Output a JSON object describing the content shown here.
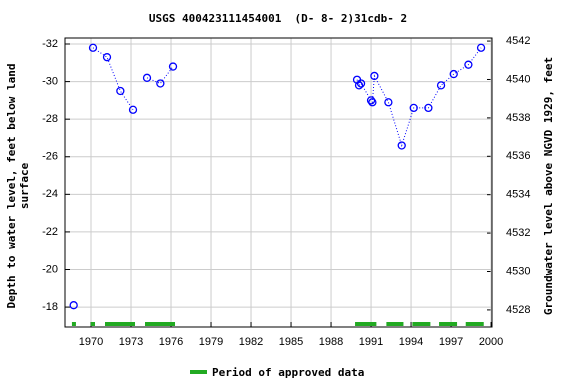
{
  "chart_data": {
    "type": "line",
    "title": "USGS 400423111454001  (D- 8- 2)31cdb- 2",
    "y_label": [
      "Depth to water level, feet below land",
      "surface"
    ],
    "y2_label": "Groundwater level above NGVD 1929, feet",
    "x": [
      1968.7,
      null,
      1970.15,
      1971.2,
      1972.2,
      1973.15,
      null,
      1974.2,
      1975.2,
      1976.15,
      null,
      1989.95,
      1990.1,
      1990.25,
      1991.0,
      1991.1,
      1991.25,
      1992.3,
      1993.3,
      1994.2,
      1995.3,
      1996.25,
      1997.2,
      1998.3,
      1999.25
    ],
    "series": [
      {
        "name": "Depth to water level",
        "color": "#0000ff",
        "values": [
          -18.1,
          null,
          -31.8,
          -31.3,
          -29.5,
          -28.5,
          null,
          -30.2,
          -29.9,
          -30.8,
          null,
          -30.1,
          -29.8,
          -29.9,
          -29.0,
          -28.9,
          -30.3,
          -28.9,
          -26.6,
          -28.6,
          -28.6,
          -29.8,
          -30.4,
          -30.9,
          -31.8
        ]
      }
    ],
    "xlim": [
      1968.05,
      2000.07
    ],
    "xticks": [
      1970,
      1973,
      1976,
      1979,
      1982,
      1985,
      1988,
      1991,
      1994,
      1997,
      2000
    ],
    "ylim": [
      -16.94,
      -32.32
    ],
    "yticks": [
      -32,
      -30,
      -28,
      -26,
      -24,
      -22,
      -20,
      -18
    ],
    "y2lim": [
      4527.11,
      4542.16
    ],
    "y2ticks": [
      4528,
      4530,
      4532,
      4534,
      4536,
      4538,
      4540,
      4542
    ],
    "grid": true,
    "approved_periods": [
      [
        1968.57,
        1968.87
      ],
      [
        1969.98,
        1970.3
      ],
      [
        1971.05,
        1973.3
      ],
      [
        1974.05,
        1976.3
      ],
      [
        1989.8,
        1991.4
      ],
      [
        1992.15,
        1993.43
      ],
      [
        1994.1,
        1995.45
      ],
      [
        1996.1,
        1997.45
      ],
      [
        1998.1,
        1999.45
      ]
    ],
    "approved_color": "#22aa22",
    "legend_label": "Period of approved data"
  }
}
